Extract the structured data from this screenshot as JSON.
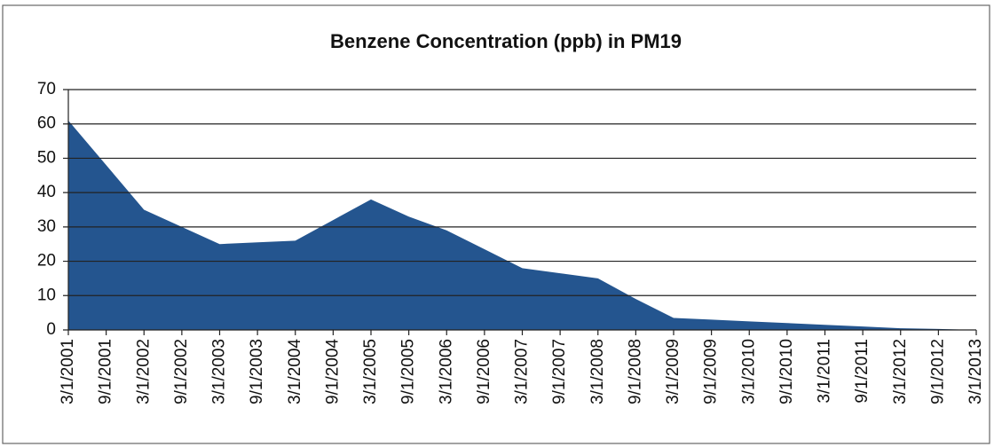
{
  "chart_data": {
    "type": "area",
    "title": "Benzene Concentration (ppb) in PM19",
    "categories": [
      "3/1/2001",
      "9/1/2001",
      "3/1/2002",
      "9/1/2002",
      "3/1/2003",
      "9/1/2003",
      "3/1/2004",
      "9/1/2004",
      "3/1/2005",
      "9/1/2005",
      "3/1/2006",
      "9/1/2006",
      "3/1/2007",
      "9/1/2007",
      "3/1/2008",
      "9/1/2008",
      "3/1/2009",
      "9/1/2009",
      "3/1/2010",
      "9/1/2010",
      "3/1/2011",
      "9/1/2011",
      "3/1/2012",
      "9/1/2012",
      "3/1/2013"
    ],
    "values": [
      61,
      48,
      35,
      30,
      25,
      25.5,
      26,
      32,
      38,
      33,
      29,
      23.5,
      18,
      16.5,
      15,
      9,
      3.5,
      3,
      2.5,
      2,
      1.5,
      1,
      0.5,
      0.3,
      0
    ],
    "color": "#24558f",
    "ylim": [
      0,
      70
    ],
    "yticks": [
      0,
      10,
      20,
      30,
      40,
      50,
      60,
      70
    ],
    "grid": true
  }
}
